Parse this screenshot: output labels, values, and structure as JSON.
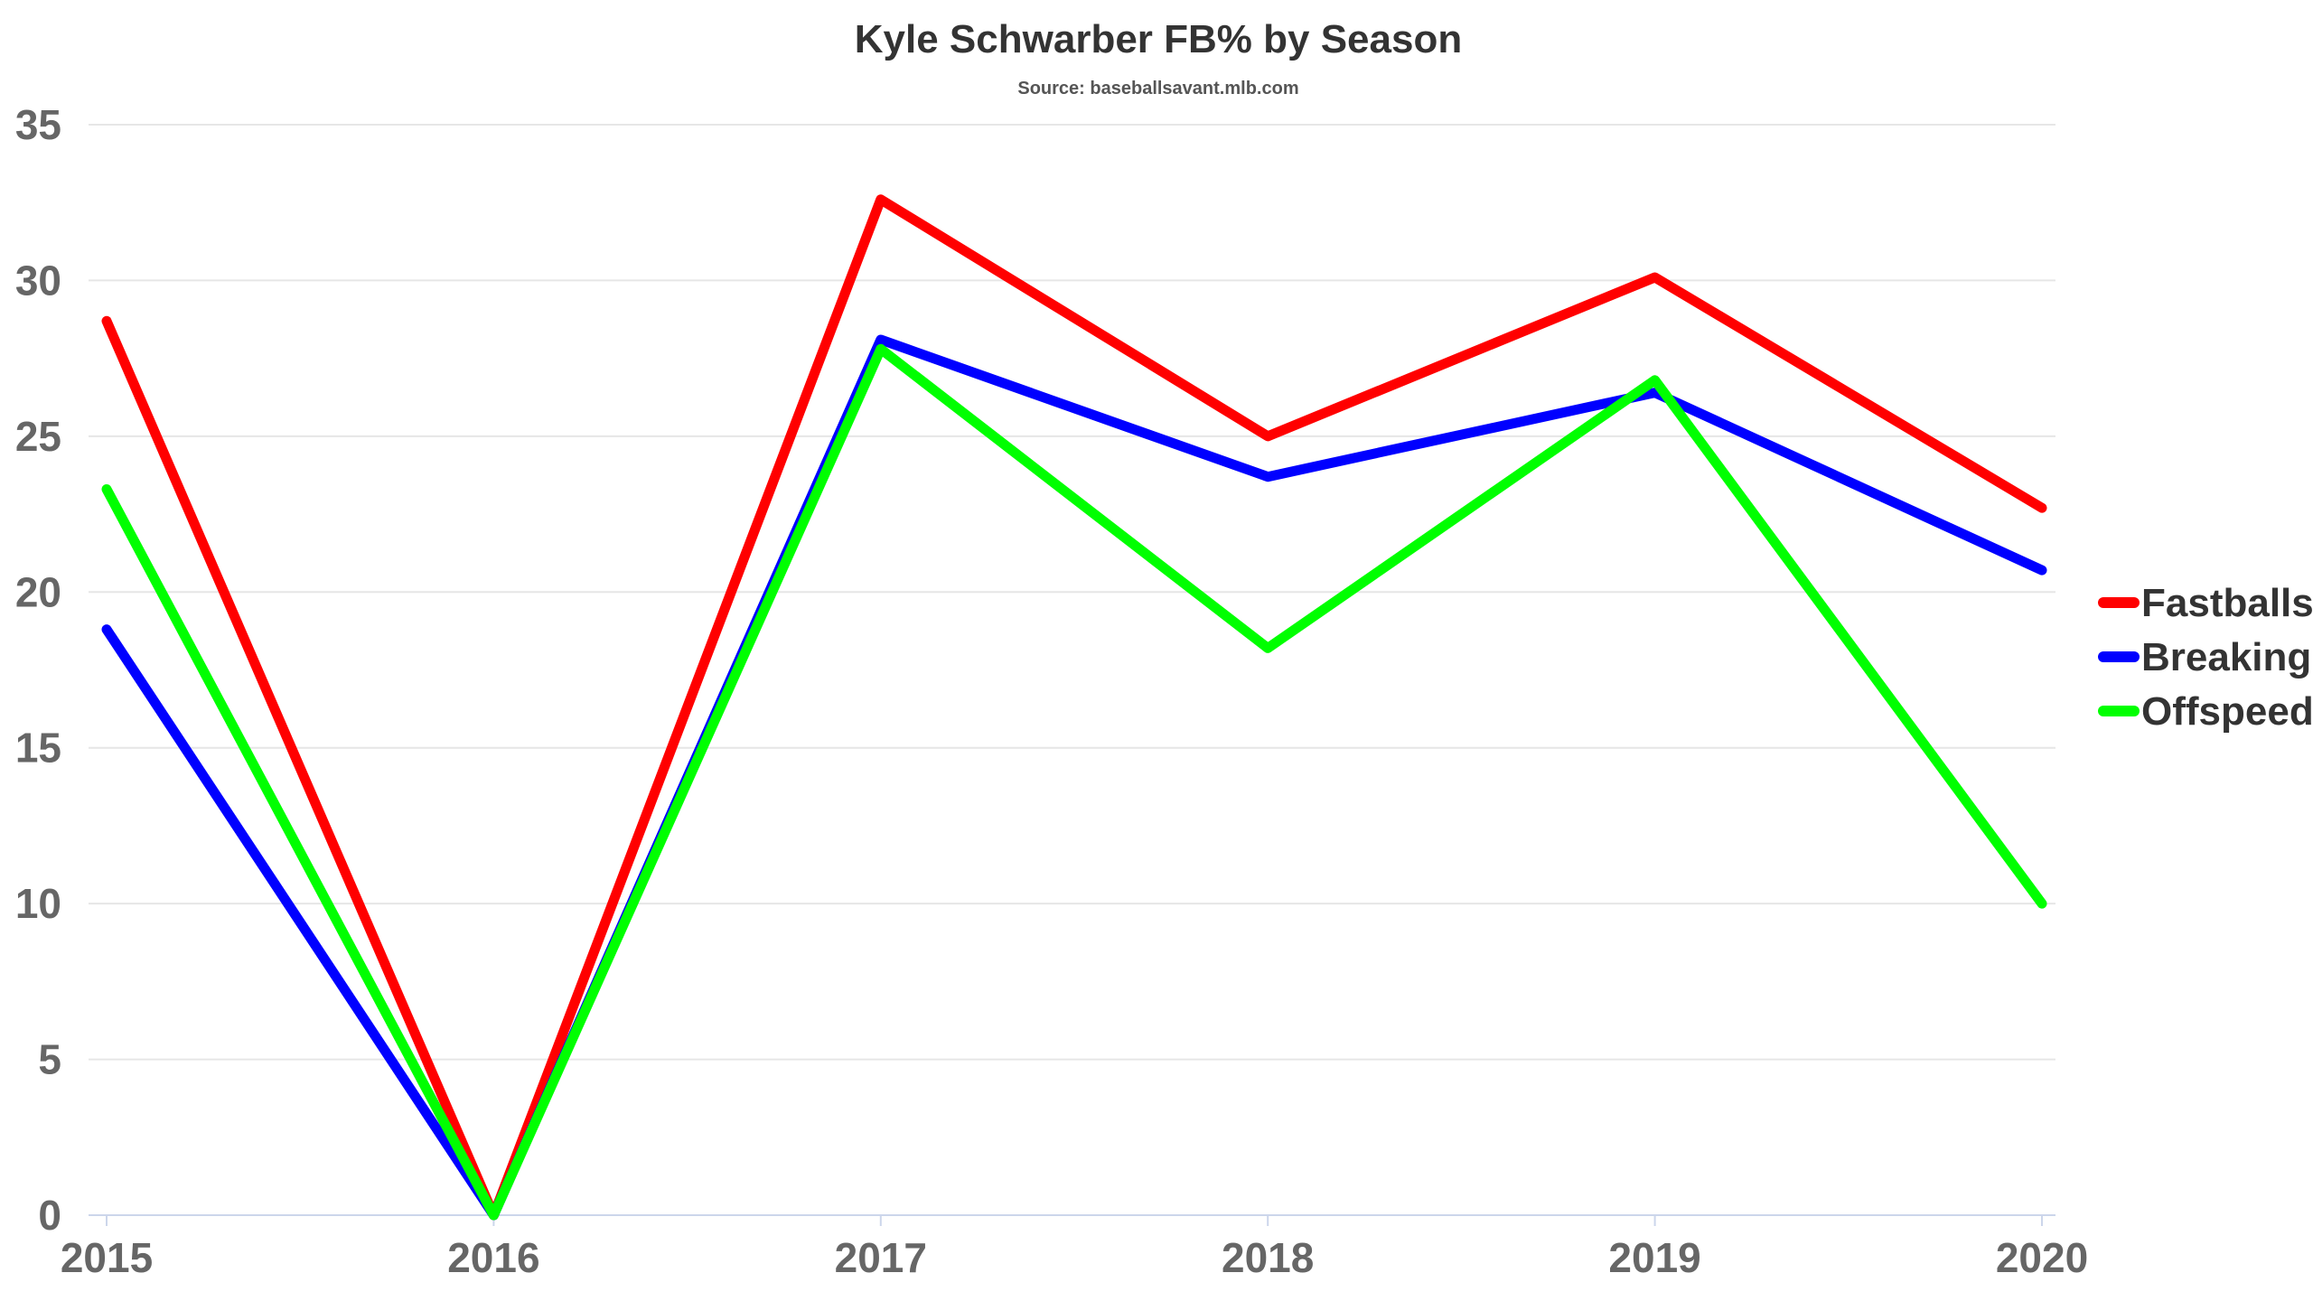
{
  "chart_data": {
    "type": "line",
    "title": "Kyle Schwarber FB% by Season",
    "subtitle": "Source: baseballsavant.mlb.com",
    "categories": [
      "2015",
      "2016",
      "2017",
      "2018",
      "2019",
      "2020"
    ],
    "ylim": [
      0,
      35
    ],
    "yticks": [
      0,
      5,
      10,
      15,
      20,
      25,
      30,
      35
    ],
    "grid": true,
    "legend_position": "right",
    "series": [
      {
        "name": "Fastballs",
        "color": "#ff0000",
        "values": [
          28.7,
          0,
          32.6,
          25.0,
          30.1,
          22.7
        ]
      },
      {
        "name": "Breaking",
        "color": "#0000ff",
        "values": [
          18.8,
          0,
          28.1,
          23.7,
          26.4,
          20.7
        ]
      },
      {
        "name": "Offspeed",
        "color": "#00ff00",
        "values": [
          23.3,
          0,
          27.8,
          18.2,
          26.8,
          10.0
        ]
      }
    ]
  }
}
